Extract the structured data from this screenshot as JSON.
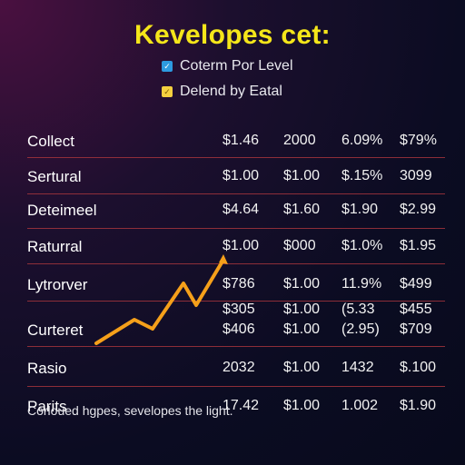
{
  "title": "Kevelopes cet:",
  "legend": [
    {
      "label": "Coterm Por Level",
      "icon": "checkbox-icon",
      "color": "#2d9ae0"
    },
    {
      "label": "Delend by Eatal",
      "icon": "checkbox-icon",
      "color": "#f4d03f"
    }
  ],
  "rows": [
    {
      "label": "Collect",
      "cells": [
        "$1.46",
        "2000",
        "6.09%",
        "$79%"
      ]
    },
    {
      "label": "Sertural",
      "cells": [
        "$1.00",
        "$1.00",
        "$.15%",
        "3099"
      ]
    },
    {
      "label": "Deteimeel",
      "cells": [
        "$4.64",
        "$1.60",
        "$1.90",
        "$2.99"
      ]
    },
    {
      "label": "Raturral",
      "cells": [
        "$1.00",
        "$000",
        "$1.0%",
        "$1.95"
      ]
    },
    {
      "label": "Lytrorver",
      "cells": [
        "$786",
        "$1.00",
        "11.9%",
        "$499"
      ]
    },
    {
      "label": "",
      "cells": [
        "$305",
        "$1.00",
        "(5.33",
        "$455"
      ]
    },
    {
      "label": "Curteret",
      "cells": [
        "$406",
        "$1.00",
        "(2.95)",
        "$709"
      ]
    },
    {
      "label": "Rasio",
      "cells": [
        "2032",
        "$1.00",
        "1432",
        "$.100"
      ]
    },
    {
      "label": "Parits",
      "cells": [
        "17.42",
        "$1.00",
        "1.002",
        "$1.90"
      ]
    }
  ],
  "footer": "Corloued hgpes, sevelopes the light.",
  "trend_color": "#f5a01a"
}
